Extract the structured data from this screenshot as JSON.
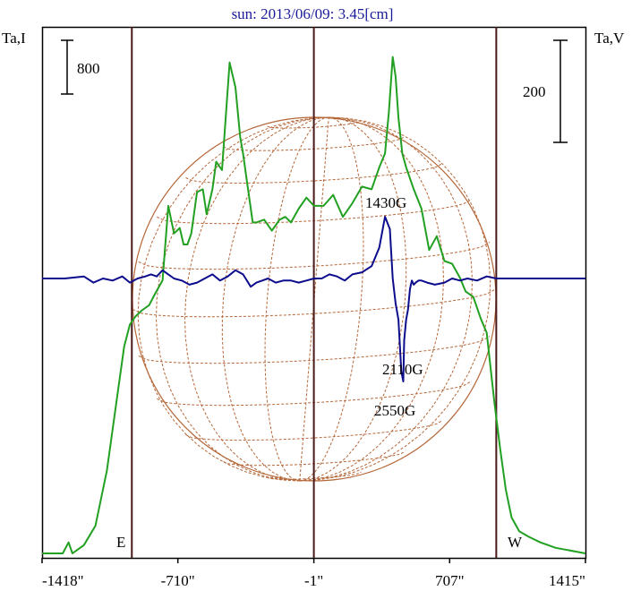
{
  "chart_data": {
    "type": "line",
    "title": "sun: 2013/06/09: 3.45[cm]",
    "ylabel_left": "Ta,I",
    "ylabel_right": "Ta,V",
    "x_ticks": [
      "-1418\"",
      "-710\"",
      "-1\"",
      "707\"",
      "1415\""
    ],
    "x_tick_values": [
      -1418,
      -710,
      -1,
      707,
      1415
    ],
    "xlim": [
      -1418,
      1415
    ],
    "limb_markers": [
      {
        "label": "E",
        "x": -950
      },
      {
        "label": "W",
        "x": 950
      }
    ],
    "scale_bars": {
      "left": "800",
      "right": "200"
    },
    "annotations": [
      {
        "text": "1430G",
        "x": 400
      },
      {
        "text": "2110G",
        "x": 480
      },
      {
        "text": "2550G",
        "x": 470
      }
    ],
    "grid": "solar disk coordinate grid",
    "colors": {
      "stokes_I": "#22a022",
      "stokes_V": "#0c0c8c",
      "limb_lines": "#4a1a1a",
      "sun_grid": "#b5683a",
      "title": "#1a1a9a",
      "frame": "#000000"
    },
    "series": [
      {
        "name": "I",
        "x": [
          -1418,
          -1310,
          -1280,
          -1260,
          -1240,
          -1200,
          -1140,
          -1080,
          -1030,
          -990,
          -960,
          -930,
          -900,
          -860,
          -830,
          -790,
          -760,
          -730,
          -700,
          -680,
          -660,
          -640,
          -610,
          -580,
          -560,
          -530,
          -510,
          -480,
          -440,
          -410,
          -385,
          -370,
          -350,
          -320,
          -300,
          -260,
          -220,
          -180,
          -150,
          -120,
          -80,
          -40,
          0,
          50,
          100,
          150,
          200,
          250,
          300,
          340,
          370,
          390,
          410,
          425,
          440,
          460,
          480,
          520,
          560,
          600,
          640,
          680,
          720,
          760,
          790,
          830,
          870,
          900,
          940,
          970,
          1000,
          1030,
          1070,
          1120,
          1180,
          1260,
          1415
        ],
        "y": [
          0.0,
          0.0,
          0.04,
          0.0,
          0.01,
          0.03,
          0.1,
          0.3,
          0.55,
          0.75,
          0.83,
          0.86,
          0.88,
          0.9,
          0.94,
          0.99,
          1.26,
          1.16,
          1.18,
          1.12,
          1.12,
          1.16,
          1.31,
          1.32,
          1.23,
          1.32,
          1.42,
          1.39,
          1.78,
          1.69,
          1.51,
          1.45,
          1.35,
          1.2,
          1.2,
          1.21,
          1.17,
          1.21,
          1.22,
          1.2,
          1.25,
          1.29,
          1.26,
          1.26,
          1.3,
          1.22,
          1.27,
          1.33,
          1.32,
          1.4,
          1.45,
          1.6,
          1.8,
          1.73,
          1.58,
          1.45,
          1.4,
          1.32,
          1.25,
          1.1,
          1.15,
          1.06,
          1.05,
          1.0,
          0.95,
          0.93,
          0.85,
          0.8,
          0.55,
          0.38,
          0.23,
          0.13,
          0.08,
          0.06,
          0.04,
          0.02,
          0.0
        ]
      },
      {
        "name": "V",
        "x": [
          -1418,
          -1300,
          -1200,
          -1150,
          -1100,
          -1050,
          -1000,
          -960,
          -920,
          -880,
          -850,
          -820,
          -790,
          -760,
          -730,
          -690,
          -650,
          -610,
          -570,
          -530,
          -490,
          -450,
          -410,
          -370,
          -330,
          -300,
          -270,
          -240,
          -200,
          -160,
          -120,
          -80,
          -40,
          0,
          40,
          80,
          120,
          160,
          200,
          250,
          300,
          340,
          370,
          395,
          410,
          425,
          440,
          455,
          465,
          470,
          480,
          490,
          500,
          510,
          520,
          530,
          545,
          560,
          590,
          630,
          680,
          720,
          760,
          800,
          850,
          900,
          950,
          1000,
          1050,
          1100,
          1150,
          1200,
          1300,
          1415
        ],
        "y": [
          0.0,
          0.0,
          0.01,
          -0.02,
          0.0,
          -0.01,
          0.01,
          -0.02,
          0.0,
          0.01,
          0.02,
          0.01,
          0.04,
          0.02,
          0.0,
          -0.01,
          -0.03,
          -0.02,
          0.0,
          0.02,
          -0.01,
          0.01,
          0.04,
          0.02,
          -0.04,
          -0.02,
          -0.01,
          0.0,
          -0.02,
          -0.01,
          -0.01,
          -0.02,
          -0.01,
          0.0,
          0.0,
          0.02,
          0.01,
          -0.01,
          0.02,
          0.03,
          0.06,
          0.15,
          0.3,
          0.24,
          0.0,
          -0.12,
          -0.2,
          -0.45,
          -0.5,
          -0.3,
          -0.2,
          -0.15,
          -0.05,
          -0.01,
          -0.03,
          -0.02,
          -0.01,
          -0.01,
          -0.02,
          -0.03,
          -0.02,
          0.0,
          -0.01,
          0.0,
          -0.01,
          0.01,
          0.0,
          0.0,
          0.0,
          0.0,
          0.0,
          0.0,
          0.0,
          0.0
        ]
      }
    ]
  }
}
